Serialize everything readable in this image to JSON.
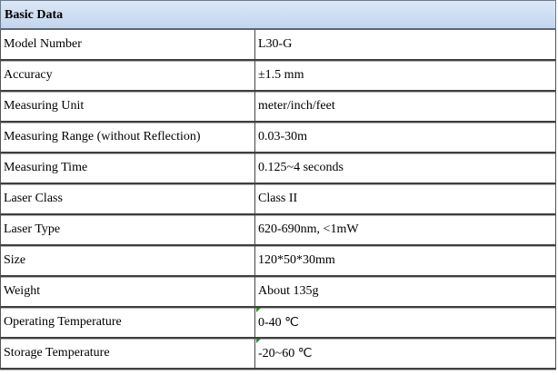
{
  "table": {
    "title": "Basic Data",
    "rows": [
      [
        "Model Number",
        "L30-G"
      ],
      [
        "Accuracy",
        "±1.5 mm"
      ],
      [
        "Measuring Unit",
        "meter/inch/feet"
      ],
      [
        "Measuring Range (without Reflection)",
        "0.03-30m"
      ],
      [
        "Measuring Time",
        "0.125~4 seconds"
      ],
      [
        "Laser Class",
        "Class II"
      ],
      [
        "Laser Type",
        "620-690nm, <1mW"
      ],
      [
        "Size",
        "120*50*30mm"
      ],
      [
        "Weight",
        "About 135g"
      ],
      [
        "Operating Temperature",
        "0-40 ℃"
      ],
      [
        "Storage Temperature",
        "-20~60 ℃"
      ]
    ]
  }
}
